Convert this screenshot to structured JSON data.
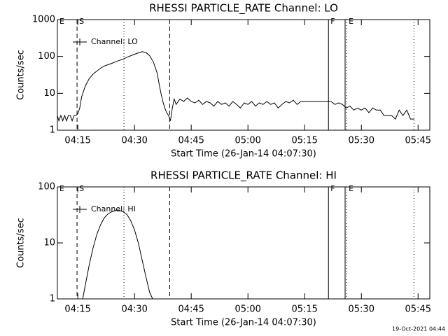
{
  "chart_data": [
    {
      "type": "line",
      "title": "RHESSI PARTICLE_RATE Channel: LO",
      "ylabel": "Counts/sec",
      "xlabel": "Start Time (26-Jan-14 04:07:30)",
      "log_y": true,
      "legend": "upper left",
      "xlim": [
        9.6,
        108.1
      ],
      "ylim": [
        1,
        1000
      ],
      "xticks": [
        {
          "value": 15,
          "label": "04:15"
        },
        {
          "value": 30,
          "label": "04:30"
        },
        {
          "value": 45,
          "label": "04:45"
        },
        {
          "value": 60,
          "label": "05:00"
        },
        {
          "value": 75,
          "label": "05:15"
        },
        {
          "value": 90,
          "label": "05:30"
        },
        {
          "value": 105,
          "label": "05:45"
        }
      ],
      "yticks": [
        1,
        10,
        100,
        1000
      ],
      "markers": [
        {
          "x": 9.6,
          "label": "E",
          "style": "none"
        },
        {
          "x": 14.8,
          "label": "S",
          "style": "dashed"
        },
        {
          "x": 27.2,
          "style": "dotted"
        },
        {
          "x": 39.3,
          "style": "dashed"
        },
        {
          "x": 81.3,
          "label": "F",
          "style": "solid"
        },
        {
          "x": 85.7,
          "style": "solid"
        },
        {
          "x": 86.1,
          "label": "E",
          "style": "dotted"
        },
        {
          "x": 103.9,
          "style": "dotted"
        }
      ],
      "x": [
        9.6,
        10,
        10.5,
        11,
        11.5,
        12,
        12.5,
        13,
        13.5,
        14,
        14.5,
        15,
        15.5,
        16,
        17,
        18,
        19,
        20,
        21,
        22,
        23,
        24,
        25,
        26,
        27,
        28,
        29,
        30,
        31,
        32,
        33,
        34,
        35,
        36,
        36.5,
        37,
        37.5,
        38,
        38.5,
        39,
        39.5,
        40,
        40.5,
        41,
        42,
        43,
        44,
        45,
        46,
        47,
        48,
        49,
        50,
        51,
        52,
        53,
        54,
        55,
        56,
        57,
        58,
        59,
        60,
        61,
        62,
        63,
        64,
        65,
        66,
        67,
        68,
        69,
        70,
        71,
        72,
        73,
        74,
        75,
        76,
        77,
        78,
        79,
        80,
        81,
        82,
        83,
        84,
        85,
        86,
        87,
        88,
        89,
        90,
        91,
        92,
        93,
        94,
        95,
        96,
        97,
        98,
        99,
        100,
        101,
        102,
        103,
        104
      ],
      "series": [
        {
          "name": "Channel: LO",
          "color": "#000000",
          "values": [
            2.5,
            1.8,
            2.5,
            1.8,
            2.5,
            1.8,
            2.5,
            2.5,
            1.8,
            2.5,
            2.5,
            2.8,
            4,
            8,
            16,
            25,
            33,
            40,
            48,
            55,
            60,
            65,
            72,
            78,
            85,
            95,
            105,
            115,
            125,
            135,
            128,
            105,
            70,
            35,
            18,
            10,
            6,
            4,
            3,
            2.5,
            1.8,
            4,
            7,
            5,
            7,
            6,
            7.5,
            6,
            5.5,
            6.5,
            5,
            6,
            5.5,
            4.5,
            6,
            5,
            5.5,
            4.5,
            6,
            5,
            4,
            5.5,
            5,
            6,
            4.5,
            5.5,
            5,
            6,
            5,
            5.5,
            4,
            5,
            6,
            5.5,
            6.5,
            5,
            6,
            6,
            6,
            6,
            6,
            6,
            6,
            6,
            6,
            5,
            5.5,
            5,
            4,
            4.5,
            3.5,
            4,
            3.5,
            4,
            3,
            4,
            3.5,
            3.5,
            2.5,
            2.5,
            2.5,
            2,
            3.5,
            2.5,
            3.5,
            2,
            2
          ]
        }
      ]
    },
    {
      "type": "line",
      "title": "RHESSI PARTICLE_RATE Channel: HI",
      "ylabel": "Counts/sec",
      "xlabel": "Start Time (26-Jan-14 04:07:30)",
      "log_y": true,
      "legend": "upper left",
      "xlim": [
        9.6,
        108.1
      ],
      "ylim": [
        1,
        100
      ],
      "xticks": [
        {
          "value": 15,
          "label": "04:15"
        },
        {
          "value": 30,
          "label": "04:30"
        },
        {
          "value": 45,
          "label": "04:45"
        },
        {
          "value": 60,
          "label": "05:00"
        },
        {
          "value": 75,
          "label": "05:15"
        },
        {
          "value": 90,
          "label": "05:30"
        },
        {
          "value": 105,
          "label": "05:45"
        }
      ],
      "yticks": [
        1,
        10,
        100
      ],
      "markers": [
        {
          "x": 9.6,
          "label": "E",
          "style": "none"
        },
        {
          "x": 14.8,
          "label": "S",
          "style": "dashed"
        },
        {
          "x": 27.2,
          "style": "dotted"
        },
        {
          "x": 39.3,
          "style": "dashed"
        },
        {
          "x": 81.3,
          "label": "F",
          "style": "solid"
        },
        {
          "x": 85.7,
          "style": "solid"
        },
        {
          "x": 86.1,
          "label": "E",
          "style": "dotted"
        },
        {
          "x": 103.9,
          "style": "dotted"
        }
      ],
      "x": [
        16.3,
        17,
        18,
        19,
        20,
        21,
        22,
        23,
        24,
        25,
        26,
        27,
        28,
        29,
        30,
        31,
        32,
        33,
        34,
        34.8
      ],
      "series": [
        {
          "name": "Channel: HI",
          "color": "#000000",
          "values": [
            1,
            1.8,
            4,
            8,
            14,
            21,
            28,
            33,
            36,
            38,
            38,
            36,
            32,
            25,
            17,
            10,
            5,
            2.5,
            1.3,
            1
          ]
        }
      ]
    }
  ],
  "timestamp": "19-Oct-2021 04:44"
}
